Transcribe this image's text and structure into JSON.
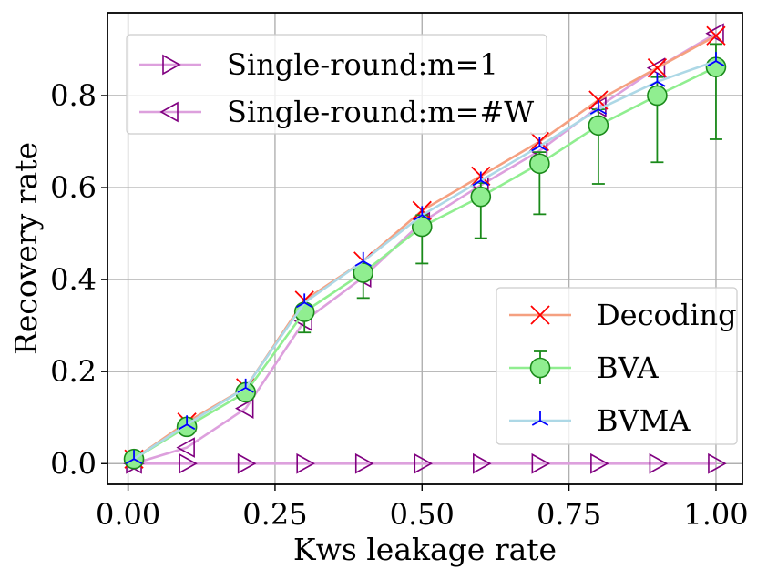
{
  "chart_data": {
    "type": "line",
    "title": "",
    "xlabel": "Kws leakage rate",
    "ylabel": "Recovery rate",
    "xlim": [
      -0.035,
      1.045
    ],
    "ylim": [
      -0.045,
      0.98
    ],
    "xticks": [
      0.0,
      0.25,
      0.5,
      0.75,
      1.0
    ],
    "xtick_labels": [
      "0.00",
      "0.25",
      "0.50",
      "0.75",
      "1.00"
    ],
    "yticks": [
      0.0,
      0.2,
      0.4,
      0.6,
      0.8
    ],
    "ytick_labels": [
      "0.0",
      "0.2",
      "0.4",
      "0.6",
      "0.8"
    ],
    "grid": true,
    "x": [
      0.01,
      0.1,
      0.2,
      0.3,
      0.4,
      0.5,
      0.6,
      0.7,
      0.8,
      0.9,
      1.0
    ],
    "series": [
      {
        "name": "Decoding",
        "line_color": "#f5a080",
        "marker": "x",
        "marker_color": "#ff0000",
        "values": [
          0.01,
          0.09,
          0.165,
          0.355,
          0.44,
          0.55,
          0.625,
          0.7,
          0.79,
          0.86,
          0.93
        ]
      },
      {
        "name": "BVA",
        "line_color": "#90ee90",
        "marker": "circle",
        "marker_color": "#90ee90",
        "marker_edge": "#1a8a1a",
        "values": [
          0.01,
          0.08,
          0.155,
          0.33,
          0.415,
          0.515,
          0.58,
          0.652,
          0.735,
          0.8,
          0.862
        ],
        "error_lower": [
          0.005,
          0.01,
          0.01,
          0.045,
          0.055,
          0.08,
          0.09,
          0.11,
          0.127,
          0.145,
          0.157
        ],
        "error_upper": [
          0.005,
          0.01,
          0.01,
          0.015,
          0.015,
          0.025,
          0.03,
          0.025,
          0.035,
          0.04,
          0.05
        ]
      },
      {
        "name": "BVMA",
        "line_color": "#add8e6",
        "marker": "tri",
        "marker_color": "#0000ff",
        "values": [
          0.01,
          0.085,
          0.165,
          0.35,
          0.44,
          0.54,
          0.615,
          0.69,
          0.77,
          0.83,
          0.875
        ]
      },
      {
        "name": "Single-round:m=1",
        "line_color": "#dda0dd",
        "marker": "triangle-right",
        "marker_color": "#800080",
        "values": [
          0.0,
          0.0,
          0.0,
          0.0,
          0.0,
          0.0,
          0.0,
          0.0,
          0.0,
          0.0,
          0.0
        ]
      },
      {
        "name": "Single-round:m=#W",
        "line_color": "#dda0dd",
        "marker": "triangle-left",
        "marker_color": "#800080",
        "values": [
          0.0,
          0.035,
          0.12,
          0.31,
          0.405,
          0.525,
          0.605,
          0.68,
          0.775,
          0.86,
          0.935
        ]
      }
    ],
    "legends": [
      {
        "location": "upper-left",
        "entries": [
          "Single-round:m=1",
          "Single-round:m=#W"
        ]
      },
      {
        "location": "lower-right",
        "entries": [
          "Decoding",
          "BVA",
          "BVMA"
        ]
      }
    ]
  }
}
